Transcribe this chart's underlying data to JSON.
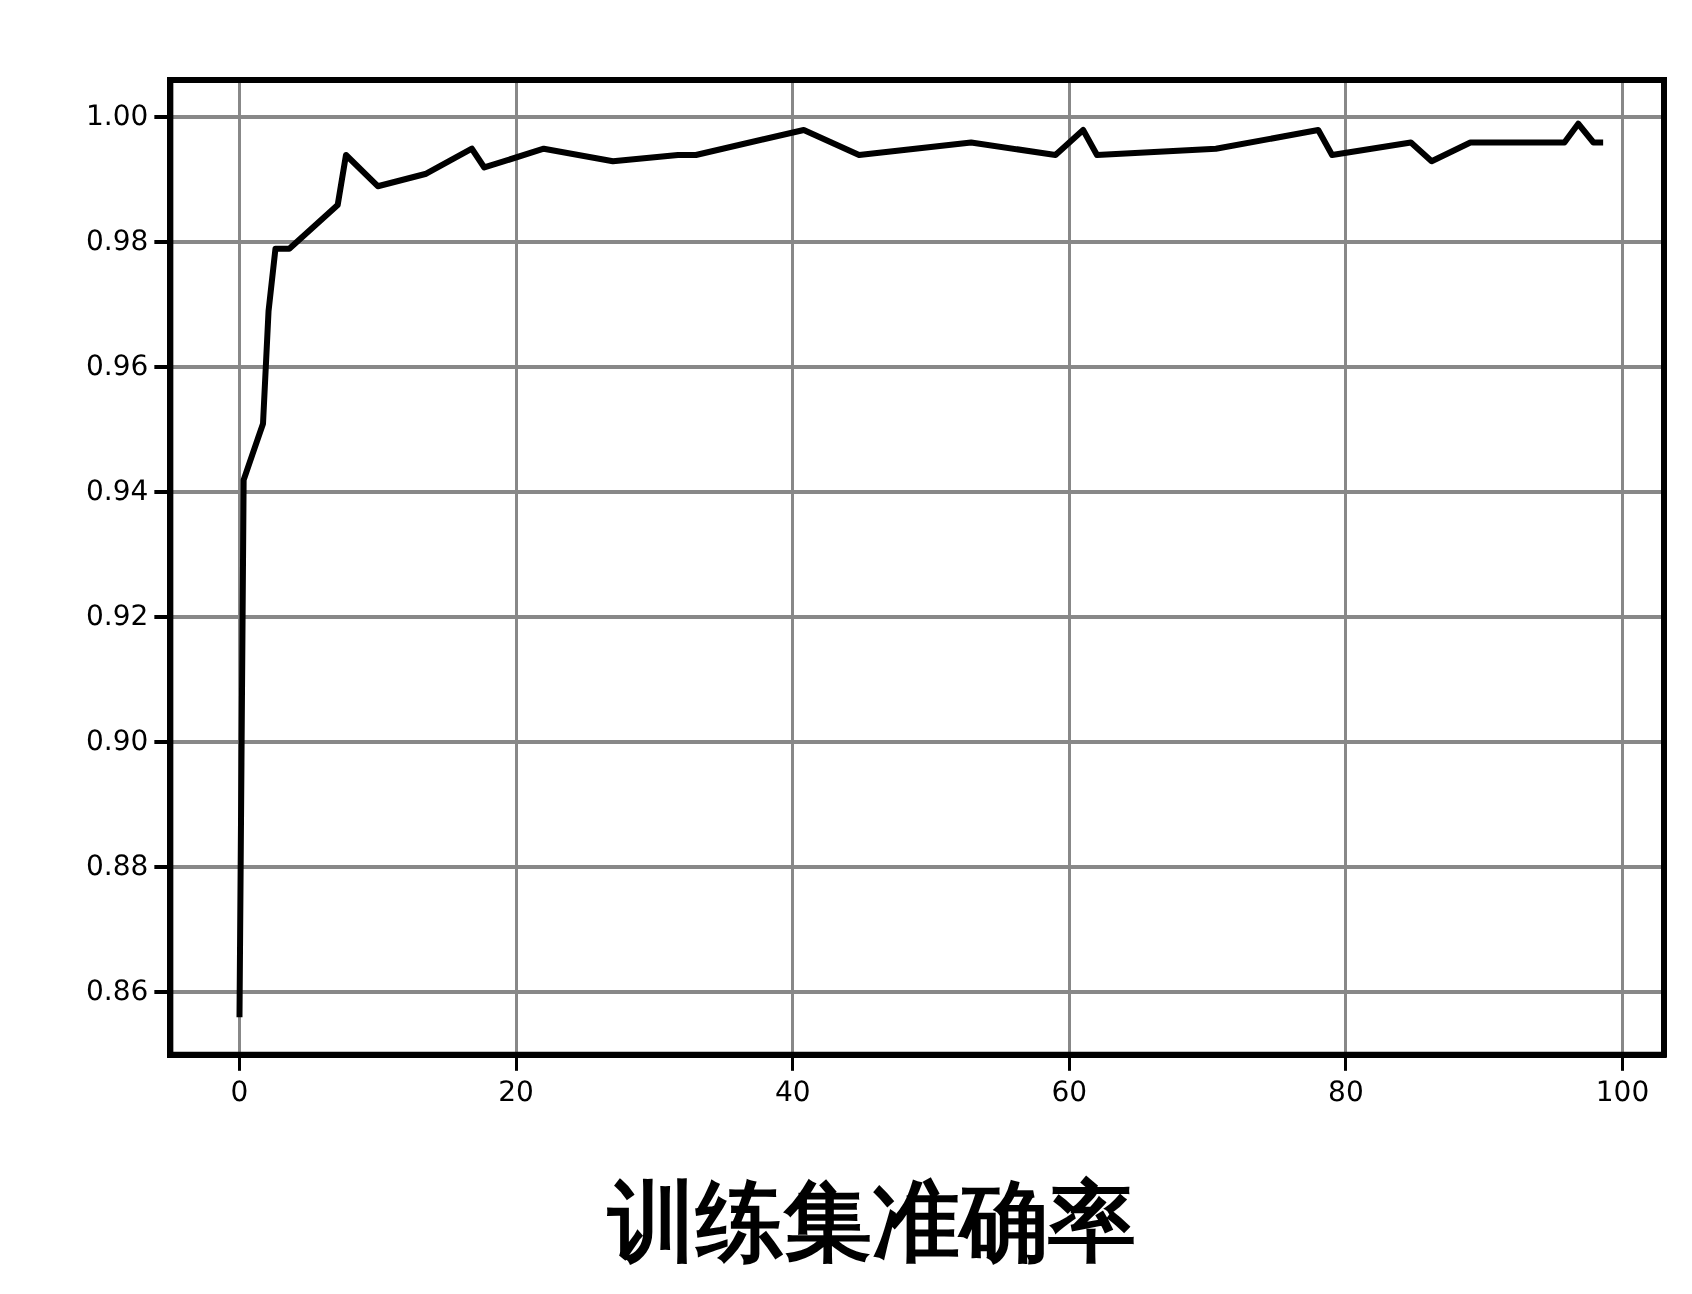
{
  "chart_data": {
    "type": "line",
    "title": "训练集准确率",
    "x": [
      0,
      0.3,
      1.7,
      2.1,
      2.6,
      3.6,
      7.1,
      7.7,
      10,
      13.5,
      16.8,
      17.7,
      22,
      27,
      31.7,
      33,
      40.8,
      44.8,
      52.9,
      59,
      61,
      62,
      70.6,
      78,
      79,
      84.7,
      86.2,
      89,
      95.8,
      96.8,
      97.9,
      98.6
    ],
    "series": [
      {
        "color": "#000000",
        "values": [
          0.856,
          0.942,
          0.951,
          0.969,
          0.979,
          0.979,
          0.986,
          0.994,
          0.989,
          0.991,
          0.995,
          0.992,
          0.995,
          0.993,
          0.994,
          0.994,
          0.998,
          0.994,
          0.996,
          0.994,
          0.998,
          0.994,
          0.995,
          0.998,
          0.994,
          0.996,
          0.993,
          0.996,
          0.996,
          0.999,
          0.996,
          0.996
        ]
      }
    ],
    "xlim": [
      -5,
      103
    ],
    "ylim": [
      0.85,
      1.006
    ],
    "xticks": [
      0,
      20,
      40,
      60,
      80,
      100
    ],
    "yticks": [
      {
        "value": 0.86,
        "label": "0.86"
      },
      {
        "value": 0.88,
        "label": "0.88"
      },
      {
        "value": 0.9,
        "label": "0.90"
      },
      {
        "value": 0.92,
        "label": "0.92"
      },
      {
        "value": 0.94,
        "label": "0.94"
      },
      {
        "value": 0.96,
        "label": "0.96"
      },
      {
        "value": 0.98,
        "label": "0.98"
      },
      {
        "value": 1,
        "label": "1.00"
      }
    ],
    "grid": true,
    "marker": "none",
    "line_style": "solid"
  }
}
